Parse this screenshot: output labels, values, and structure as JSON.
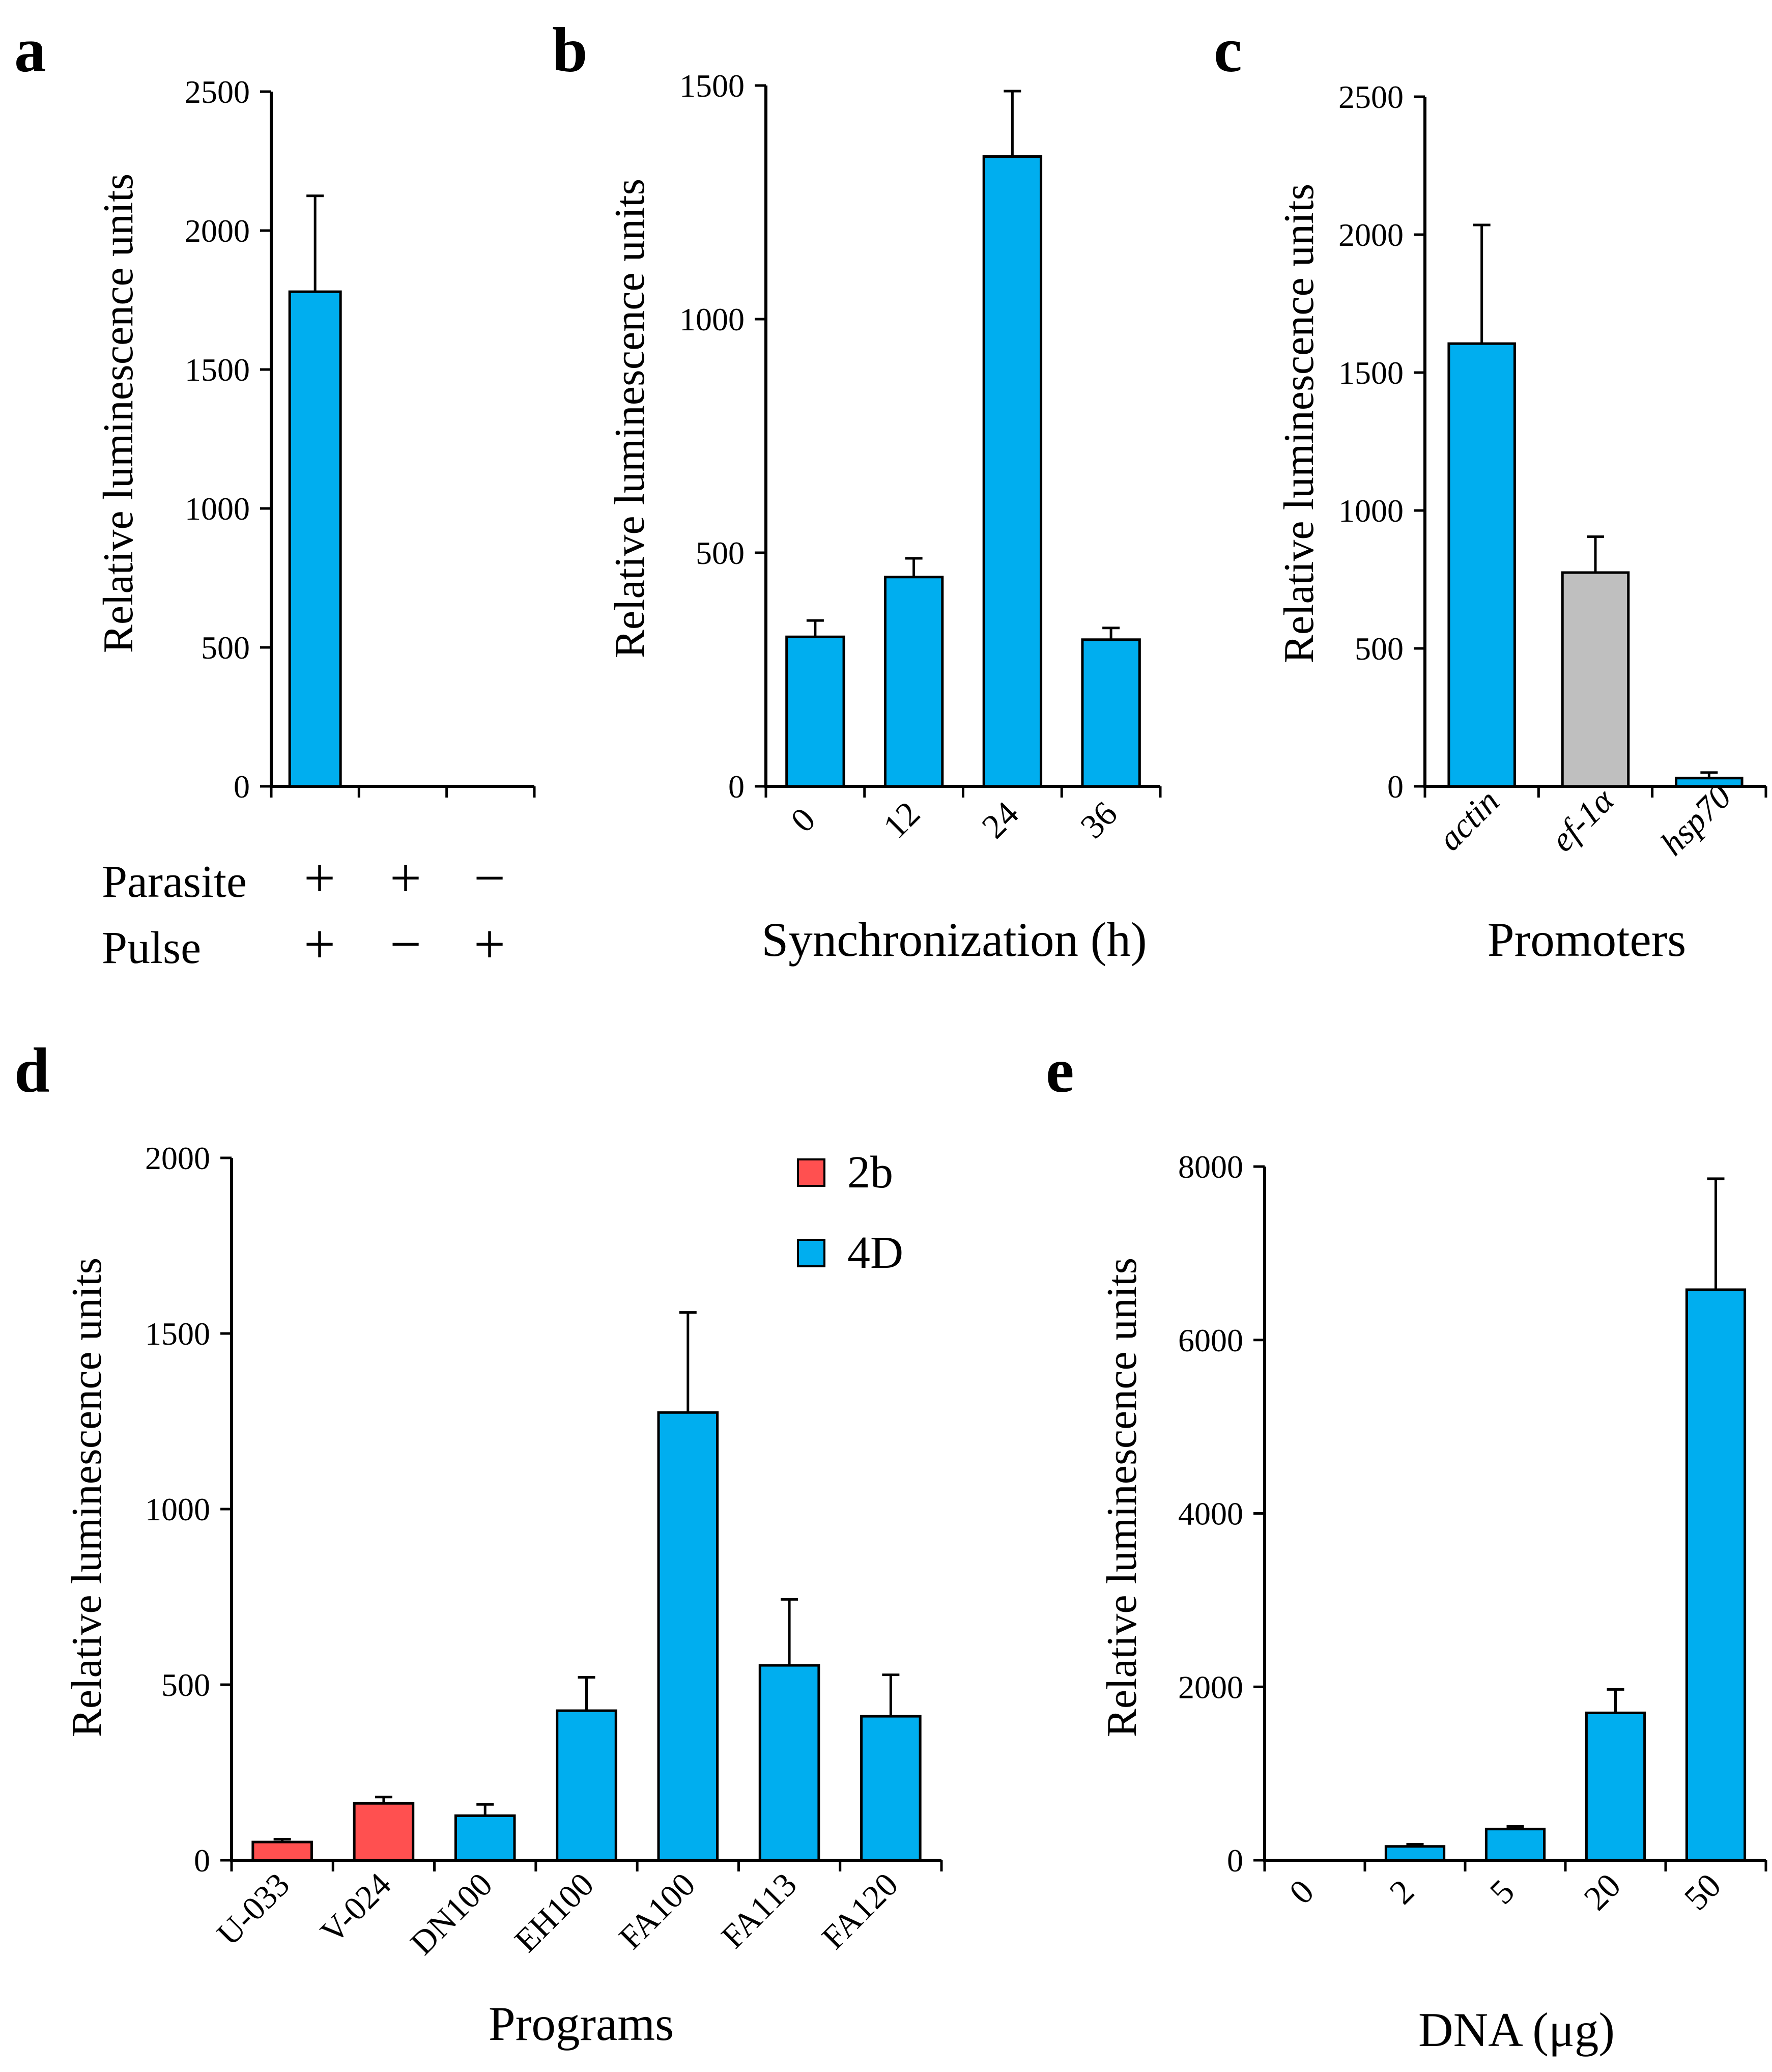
{
  "colors": {
    "blue": "#00AEEF",
    "red": "#FF5050",
    "gray": "#BFBFBF",
    "axis": "#000000"
  },
  "chart_data": [
    {
      "panel": "a",
      "type": "bar",
      "ylabel": "Relative luminescence units",
      "ylim": [
        0,
        2500
      ],
      "yticks": [
        "0",
        "500",
        "1000",
        "1500",
        "2000",
        "2500"
      ],
      "values": [
        1780,
        0,
        0
      ],
      "errors": [
        345,
        0,
        0
      ],
      "colors": [
        "blue",
        "blue",
        "blue"
      ],
      "table_rows": [
        {
          "label": "Parasite",
          "signs": [
            "+",
            "+",
            "−"
          ]
        },
        {
          "label": "Pulse",
          "signs": [
            "+",
            "−",
            "+"
          ]
        }
      ]
    },
    {
      "panel": "b",
      "type": "bar",
      "xlabel": "Synchronization (h)",
      "ylabel": "Relative luminescence units",
      "ylim": [
        0,
        1500
      ],
      "yticks": [
        "0",
        "500",
        "1000",
        "1500"
      ],
      "categories": [
        "0",
        "12",
        "24",
        "36"
      ],
      "values": [
        320,
        448,
        1348,
        314
      ],
      "errors": [
        35,
        40,
        140,
        25
      ],
      "colors": [
        "blue",
        "blue",
        "blue",
        "blue"
      ]
    },
    {
      "panel": "c",
      "type": "bar",
      "xlabel": "Promoters",
      "ylabel": "Relative luminescence units",
      "ylim": [
        0,
        2500
      ],
      "yticks": [
        "0",
        "500",
        "1000",
        "1500",
        "2000",
        "2500"
      ],
      "categories": [
        "actin",
        "ef-1α",
        "hsp70"
      ],
      "values": [
        1605,
        775,
        30
      ],
      "errors": [
        430,
        130,
        20
      ],
      "colors": [
        "blue",
        "gray",
        "blue"
      ]
    },
    {
      "panel": "d",
      "type": "bar",
      "xlabel": "Programs",
      "ylabel": "Relative luminescence units",
      "ylim": [
        0,
        2000
      ],
      "yticks": [
        "0",
        "500",
        "1000",
        "1500",
        "2000"
      ],
      "categories": [
        "U-033",
        "V-024",
        "DN100",
        "EH100",
        "FA100",
        "FA113",
        "FA120"
      ],
      "values": [
        52,
        162,
        127,
        426,
        1275,
        555,
        410
      ],
      "errors": [
        8,
        18,
        32,
        95,
        285,
        188,
        118
      ],
      "colors": [
        "red",
        "red",
        "blue",
        "blue",
        "blue",
        "blue",
        "blue"
      ],
      "legend": [
        {
          "name": "2b",
          "color": "red"
        },
        {
          "name": "4D",
          "color": "blue"
        }
      ]
    },
    {
      "panel": "e",
      "type": "bar",
      "xlabel": "DNA (μg)",
      "ylabel": "Relative luminescence units",
      "ylim": [
        0,
        8000
      ],
      "yticks": [
        "0",
        "2000",
        "4000",
        "6000",
        "8000"
      ],
      "categories": [
        "0",
        "2",
        "5",
        "20",
        "50"
      ],
      "values": [
        0,
        160,
        360,
        1700,
        6580
      ],
      "errors": [
        0,
        25,
        30,
        270,
        1280
      ],
      "colors": [
        "blue",
        "blue",
        "blue",
        "blue",
        "blue"
      ]
    }
  ]
}
